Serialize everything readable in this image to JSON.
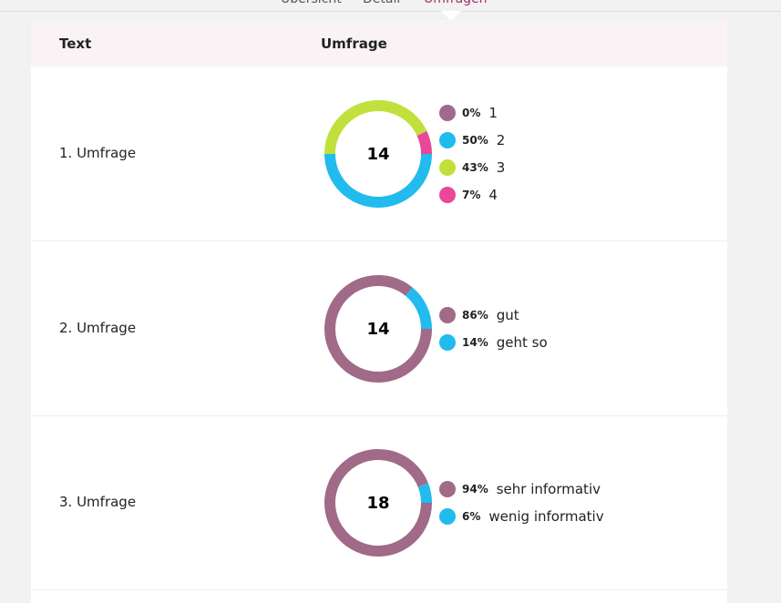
{
  "tabs": [
    "Übersicht",
    "Detail",
    "Umfragen"
  ],
  "active_tab": 2,
  "table": {
    "headers": [
      "Text",
      "Umfrage"
    ],
    "rows": [
      {
        "label": "1. Umfrage",
        "chart": {
          "type": "donut",
          "total": 14,
          "categories": [
            "1",
            "2",
            "3",
            "4"
          ],
          "values": [
            0,
            50,
            43,
            7
          ],
          "value_labels": [
            "0%",
            "50%",
            "43%",
            "7%"
          ],
          "colors": [
            "#a06a88",
            "#21bbee",
            "#c2e03c",
            "#e8479a"
          ]
        }
      },
      {
        "label": "2. Umfrage",
        "chart": {
          "type": "donut",
          "total": 14,
          "categories": [
            "gut",
            "geht so"
          ],
          "values": [
            86,
            14
          ],
          "value_labels": [
            "86%",
            "14%"
          ],
          "colors": [
            "#a06a88",
            "#21bbee"
          ]
        }
      },
      {
        "label": "3. Umfrage",
        "chart": {
          "type": "donut",
          "total": 18,
          "categories": [
            "sehr informativ",
            "wenig informativ"
          ],
          "values": [
            94,
            6
          ],
          "value_labels": [
            "94%",
            "6%"
          ],
          "colors": [
            "#a06a88",
            "#21bbee"
          ]
        }
      }
    ]
  }
}
